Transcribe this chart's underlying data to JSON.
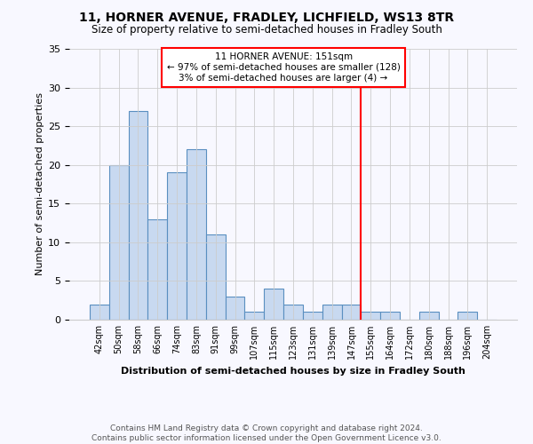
{
  "title": "11, HORNER AVENUE, FRADLEY, LICHFIELD, WS13 8TR",
  "subtitle": "Size of property relative to semi-detached houses in Fradley South",
  "xlabel": "Distribution of semi-detached houses by size in Fradley South",
  "ylabel": "Number of semi-detached properties",
  "footer_line1": "Contains HM Land Registry data © Crown copyright and database right 2024.",
  "footer_line2": "Contains public sector information licensed under the Open Government Licence v3.0.",
  "annotation_title": "11 HORNER AVENUE: 151sqm",
  "annotation_line2": "← 97% of semi-detached houses are smaller (128)",
  "annotation_line3": "3% of semi-detached houses are larger (4) →",
  "bar_labels": [
    "42sqm",
    "50sqm",
    "58sqm",
    "66sqm",
    "74sqm",
    "83sqm",
    "91sqm",
    "99sqm",
    "107sqm",
    "115sqm",
    "123sqm",
    "131sqm",
    "139sqm",
    "147sqm",
    "155sqm",
    "164sqm",
    "172sqm",
    "180sqm",
    "188sqm",
    "196sqm",
    "204sqm"
  ],
  "bar_values": [
    2,
    20,
    27,
    13,
    19,
    22,
    11,
    3,
    1,
    4,
    2,
    1,
    2,
    2,
    1,
    1,
    0,
    1,
    0,
    1,
    0
  ],
  "bar_color": "#c8d9f0",
  "bar_edge_color": "#5a8fc0",
  "vline_color": "red",
  "grid_color": "#cccccc",
  "ylim": [
    0,
    35
  ],
  "yticks": [
    0,
    5,
    10,
    15,
    20,
    25,
    30,
    35
  ],
  "bg_color": "#f8f8ff"
}
